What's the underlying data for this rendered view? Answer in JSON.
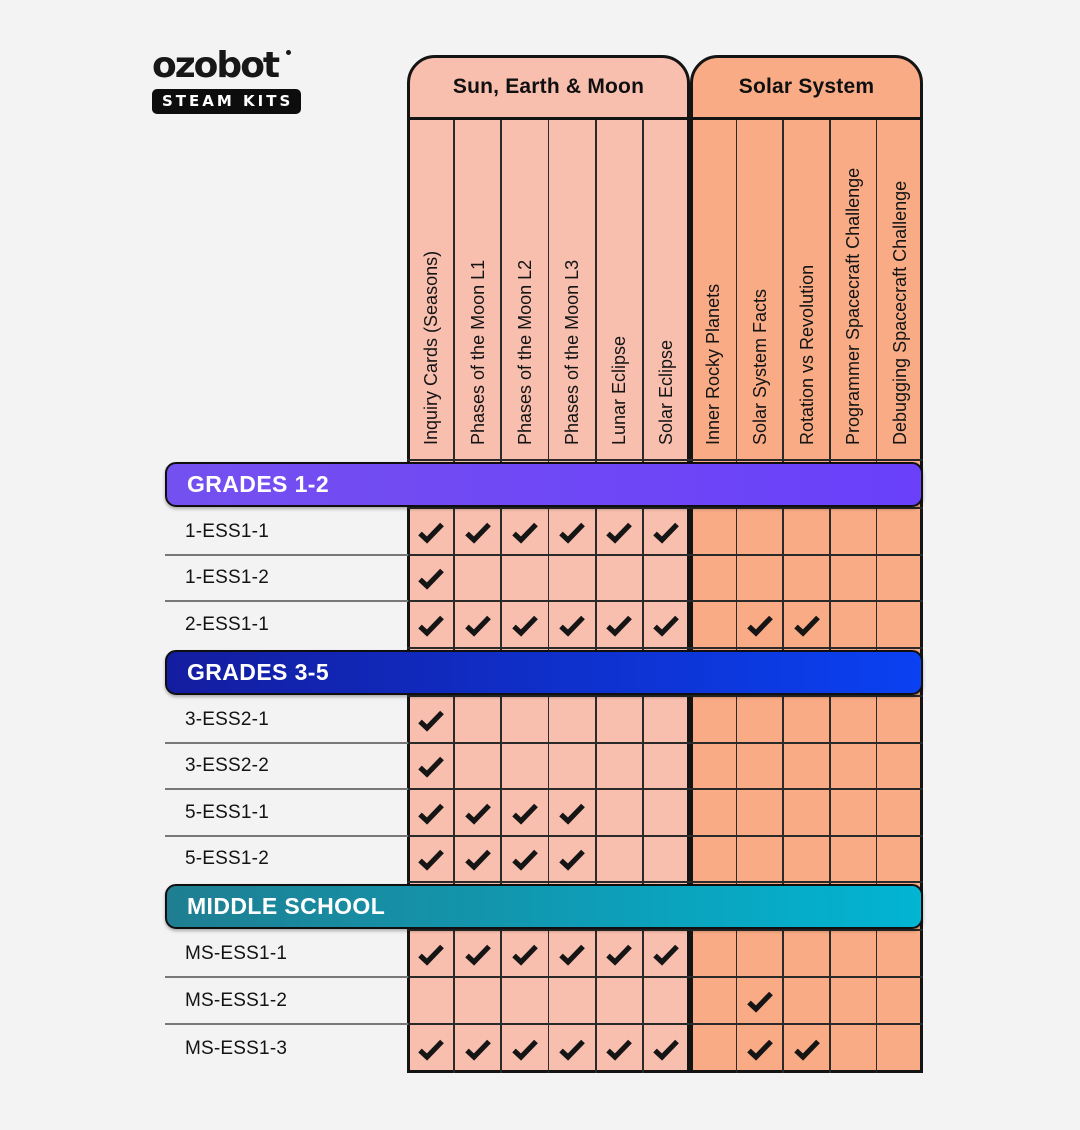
{
  "logo": {
    "brand": "ozobot",
    "badge": "STEAM KITS"
  },
  "table": {
    "groups": [
      {
        "title": "Sun, Earth & Moon",
        "fill": "#f8beae",
        "columns": [
          "Inquiry Cards (Seasons)",
          "Phases of the Moon L1",
          "Phases of the Moon L2",
          "Phases of the Moon L3",
          "Lunar Eclipse",
          "Solar Eclipse"
        ]
      },
      {
        "title": "Solar System",
        "fill": "#f8ab84",
        "columns": [
          "Inner Rocky Planets",
          "Solar System Facts",
          "Rotation vs Revolution",
          "Programmer Spacecraft Challenge",
          "Debugging Spacecraft Challenge"
        ]
      }
    ],
    "check_color": "#151515",
    "sections": [
      {
        "banner": "GRADES 1-2",
        "gradient": [
          "#7550f0",
          "#6a40fa"
        ],
        "rows": [
          {
            "label": "1-ESS1-1",
            "checks": [
              0,
              1,
              2,
              3,
              4,
              5
            ]
          },
          {
            "label": "1-ESS1-2",
            "checks": [
              0
            ]
          },
          {
            "label": "2-ESS1-1",
            "checks": [
              0,
              1,
              2,
              3,
              4,
              5,
              7,
              8
            ]
          }
        ]
      },
      {
        "banner": "GRADES 3-5",
        "gradient": [
          "#141da0",
          "#0a41f2"
        ],
        "rows": [
          {
            "label": "3-ESS2-1",
            "checks": [
              0
            ]
          },
          {
            "label": "3-ESS2-2",
            "checks": [
              0
            ]
          },
          {
            "label": "5-ESS1-1",
            "checks": [
              0,
              1,
              2,
              3
            ]
          },
          {
            "label": "5-ESS1-2",
            "checks": [
              0,
              1,
              2,
              3
            ]
          }
        ]
      },
      {
        "banner": "MIDDLE SCHOOL",
        "gradient": [
          "#1f7e91",
          "#01b5d3"
        ],
        "rows": [
          {
            "label": "MS-ESS1-1",
            "checks": [
              0,
              1,
              2,
              3,
              4,
              5
            ]
          },
          {
            "label": "MS-ESS1-2",
            "checks": [
              7
            ]
          },
          {
            "label": "MS-ESS1-3",
            "checks": [
              0,
              1,
              2,
              3,
              4,
              5,
              7,
              8
            ]
          }
        ]
      }
    ]
  }
}
